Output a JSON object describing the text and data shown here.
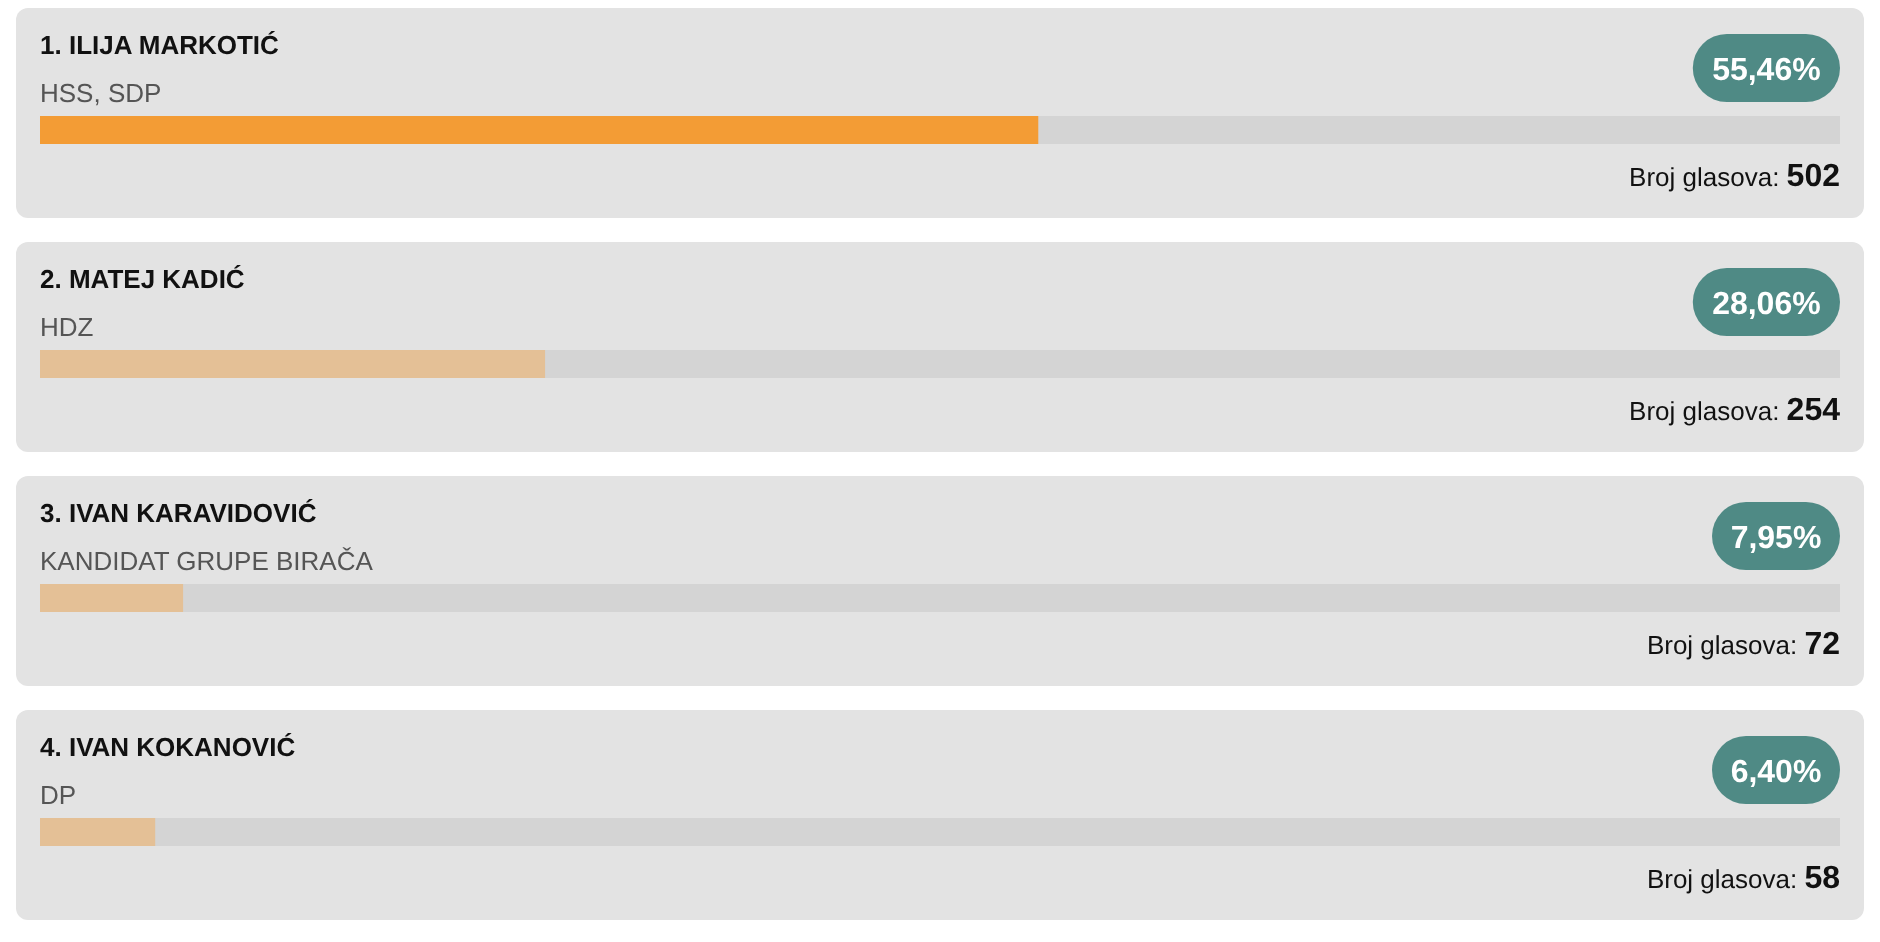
{
  "chart_data": {
    "type": "bar",
    "orientation": "horizontal",
    "categories": [
      "1. ILIJA MARKOTIĆ",
      "2. MATEJ KADIĆ",
      "3. IVAN KARAVIDOVIĆ",
      "4. IVAN KOKANOVIĆ"
    ],
    "values": [
      55.46,
      28.06,
      7.95,
      6.4
    ],
    "value_labels": [
      "55,46%",
      "28,06%",
      "7,95%",
      "6,40%"
    ],
    "colors": [
      "#f39c35",
      "#e4c096",
      "#e4c096",
      "#e4c096"
    ],
    "xlim": [
      0,
      100
    ],
    "annotations": [
      "HSS, SDP",
      "Broj glasova: 502",
      "HDZ",
      "Broj glasova: 254",
      "KANDIDAT GRUPE BIRAČA",
      "Broj glasova: 72",
      "DP",
      "Broj glasova: 58"
    ]
  }
}
